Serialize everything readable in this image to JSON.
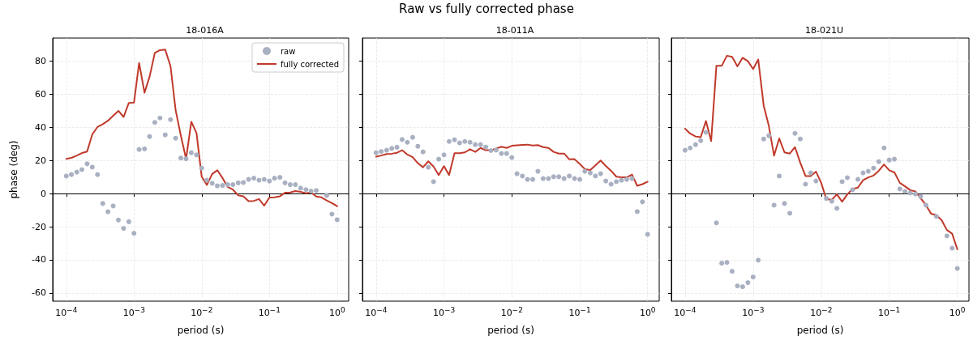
{
  "chart_data": [
    {
      "type": "line",
      "subtitle": "18-016A",
      "xlabel": "period (s)",
      "ylabel": "phase (deg)",
      "log": "x",
      "grid": true,
      "legend": "top right",
      "x": [
        0.0001,
        0.000119,
        0.000143,
        0.00017,
        0.000203,
        0.000242,
        0.000289,
        0.000346,
        0.000412,
        0.000492,
        0.000588,
        0.000702,
        0.000838,
        0.001,
        0.00119,
        0.00143,
        0.0017,
        0.00203,
        0.00242,
        0.00289,
        0.00346,
        0.00412,
        0.00492,
        0.00588,
        0.00702,
        0.00838,
        0.01,
        0.0119,
        0.0143,
        0.017,
        0.0203,
        0.0242,
        0.0289,
        0.0346,
        0.0412,
        0.0492,
        0.0588,
        0.0702,
        0.0838,
        0.1,
        0.119,
        0.143,
        0.17,
        0.203,
        0.242,
        0.289,
        0.346,
        0.412,
        0.492,
        0.588,
        0.702,
        0.838,
        1
      ],
      "xlim": [
        6.3e-05,
        1.48
      ],
      "xticks": [
        {
          "value": 0.0001,
          "label": "10$^{−4}$"
        },
        {
          "value": 0.001,
          "label": "10$^{−3}$"
        },
        {
          "value": 0.01,
          "label": "10$^{−2}$"
        },
        {
          "value": 0.1,
          "label": "10$^{−1}$"
        },
        {
          "value": 1,
          "label": "10$^{0}$"
        }
      ],
      "ylim": [
        -65,
        94
      ],
      "yticks": [
        -60,
        -40,
        -20,
        0,
        20,
        40,
        60,
        80
      ],
      "series": [
        {
          "name": "raw",
          "type": "scatter",
          "marker": "circle",
          "color": "#a9b0c1",
          "values": [
            10.6,
            11.5,
            13,
            14.5,
            18,
            16,
            11.5,
            -6,
            -11,
            -7.5,
            -16,
            -21,
            -17,
            -24,
            26.7,
            27,
            34.5,
            43,
            45.7,
            35.5,
            44.7,
            33.5,
            21.5,
            21,
            24.7,
            23.4,
            15.4,
            8.1,
            6.2,
            4.7,
            4.9,
            5.4,
            5.4,
            6.5,
            6.7,
            8.6,
            9.3,
            8.1,
            8.6,
            7.6,
            9.3,
            9.8,
            6.5,
            5.4,
            5.4,
            3.3,
            2.4,
            1.5,
            1.8,
            null,
            -1.1,
            -12.4,
            -15.8
          ]
        },
        {
          "name": "fully corrected",
          "type": "line",
          "marker": "none",
          "color": "#c0392b",
          "values": [
            21,
            21.6,
            23,
            24.5,
            25.4,
            35.8,
            40.3,
            42,
            44,
            47,
            50,
            46.3,
            54.8,
            55,
            79,
            61,
            70.7,
            85,
            86.7,
            87,
            77,
            50.4,
            35,
            21,
            43.4,
            36.6,
            10.2,
            5.2,
            11.9,
            14.1,
            9.4,
            4,
            2.4,
            -1.1,
            -1.6,
            -4.6,
            -4.4,
            -3.3,
            -7.3,
            -2.4,
            -2.3,
            -1.6,
            0.5,
            0.7,
            1.5,
            1.1,
            0.2,
            0.7,
            -1.8,
            -2.3,
            -4.1,
            -5.7,
            -7.6
          ]
        }
      ]
    },
    {
      "type": "line",
      "title": "Raw vs fully corrected phase",
      "subtitle": "18-011A",
      "xlabel": "period (s)",
      "log": "x",
      "grid": true,
      "tick_labels": "x",
      "x": [
        0.0001,
        0.000119,
        0.000143,
        0.00017,
        0.000203,
        0.000242,
        0.000289,
        0.000346,
        0.000412,
        0.000492,
        0.000588,
        0.000702,
        0.000838,
        0.001,
        0.00119,
        0.00143,
        0.0017,
        0.00203,
        0.00242,
        0.00289,
        0.00346,
        0.00412,
        0.00492,
        0.00588,
        0.00702,
        0.00838,
        0.01,
        0.0119,
        0.0143,
        0.017,
        0.0203,
        0.0242,
        0.0289,
        0.0346,
        0.0412,
        0.0492,
        0.0588,
        0.0702,
        0.0838,
        0.1,
        0.119,
        0.143,
        0.17,
        0.203,
        0.242,
        0.289,
        0.346,
        0.412,
        0.492,
        0.588,
        0.702,
        0.838,
        1
      ],
      "xlim": [
        6.3e-05,
        1.48
      ],
      "xticks": [
        {
          "value": 0.0001,
          "label": "10$^{−4}$"
        },
        {
          "value": 0.001,
          "label": "10$^{−3}$"
        },
        {
          "value": 0.01,
          "label": "10$^{−2}$"
        },
        {
          "value": 0.1,
          "label": "10$^{−1}$"
        },
        {
          "value": 1,
          "label": "10$^{0}$"
        }
      ],
      "ylim": [
        -65,
        94
      ],
      "yticks": [
        -60,
        -40,
        -20,
        0,
        20,
        40,
        60,
        80
      ],
      "series": [
        {
          "type": "scatter",
          "marker": "circle",
          "color": "#a9b0c1",
          "values": [
            24.7,
            25.4,
            26.2,
            27.3,
            28,
            32.7,
            31,
            34,
            28.6,
            25.2,
            15.9,
            7.2,
            20.8,
            23.4,
            31.5,
            32.5,
            30.6,
            31.5,
            31,
            29.6,
            29.6,
            28.1,
            26,
            26.3,
            24.2,
            24.2,
            21.8,
            12,
            10.6,
            8.6,
            8.6,
            13.5,
            9.1,
            9.1,
            10.2,
            10.2,
            9.1,
            10.6,
            9.1,
            8.6,
            13.5,
            12.5,
            10.6,
            12,
            7.6,
            5.7,
            7.2,
            8.1,
            8.6,
            9.1,
            -10.9,
            -5,
            -24.6
          ]
        },
        {
          "type": "line",
          "marker": "none",
          "color": "#c0392b",
          "values": [
            22.3,
            23,
            23.9,
            24.1,
            24.7,
            26.2,
            23.6,
            22,
            18.4,
            15.9,
            19.5,
            16.3,
            11.2,
            16.6,
            11.2,
            24.4,
            24.4,
            24.9,
            26.8,
            25.2,
            27.6,
            26.2,
            26.2,
            27.2,
            28.3,
            27.6,
            28.9,
            29.2,
            29.4,
            29.6,
            29.1,
            29.3,
            28.1,
            27.6,
            25.2,
            24.2,
            24.2,
            20.7,
            20.8,
            17.9,
            14.8,
            14.3,
            17.1,
            20,
            16.7,
            13.8,
            10.2,
            9.9,
            9.8,
            11.5,
            4.7,
            5.7,
            7.2
          ]
        }
      ]
    },
    {
      "type": "line",
      "subtitle": "18-021U",
      "xlabel": "period (s)",
      "log": "x",
      "grid": true,
      "tick_labels": "x",
      "x": [
        0.0001,
        0.000119,
        0.000143,
        0.00017,
        0.000203,
        0.000242,
        0.000289,
        0.000346,
        0.000412,
        0.000492,
        0.000588,
        0.000702,
        0.000838,
        0.001,
        0.00119,
        0.00143,
        0.0017,
        0.00203,
        0.00242,
        0.00289,
        0.00346,
        0.00412,
        0.00492,
        0.00588,
        0.00702,
        0.00838,
        0.01,
        0.0119,
        0.0143,
        0.017,
        0.0203,
        0.0242,
        0.0289,
        0.0346,
        0.0412,
        0.0492,
        0.0588,
        0.0702,
        0.0838,
        0.1,
        0.119,
        0.143,
        0.17,
        0.203,
        0.242,
        0.289,
        0.346,
        0.412,
        0.492,
        0.588,
        0.702,
        0.838,
        1
      ],
      "xlim": [
        6.3e-05,
        1.48
      ],
      "xticks": [
        {
          "value": 0.0001,
          "label": "10$^{−4}$"
        },
        {
          "value": 0.001,
          "label": "10$^{−3}$"
        },
        {
          "value": 0.01,
          "label": "10$^{−2}$"
        },
        {
          "value": 0.1,
          "label": "10$^{−1}$"
        },
        {
          "value": 1,
          "label": "10$^{0}$"
        }
      ],
      "ylim": [
        -65,
        94
      ],
      "yticks": [
        -60,
        -40,
        -20,
        0,
        20,
        40,
        60,
        80
      ],
      "series": [
        {
          "type": "scatter",
          "marker": "circle",
          "color": "#a9b0c1",
          "values": [
            26.2,
            27.6,
            29.6,
            32,
            37,
            null,
            -17.7,
            -42.1,
            -41.6,
            -47,
            -55.8,
            -56.3,
            -53.8,
            -50.4,
            -40.2,
            33,
            35,
            -7,
            10.6,
            -6,
            -11.9,
            36.4,
            33,
            5.7,
            12.5,
            7.6,
            null,
            -2.9,
            -4.6,
            -8.9,
            7.2,
            9.6,
            2.3,
            8.6,
            12.5,
            13.5,
            15.4,
            19.3,
            27.6,
            20.3,
            20.8,
            2.8,
            1.3,
            0.3,
            -0.2,
            -1.8,
            -7,
            null,
            -13.8,
            null,
            -25.6,
            -33,
            -45.2
          ]
        },
        {
          "type": "line",
          "marker": "none",
          "color": "#c0392b",
          "values": [
            39.2,
            36.3,
            34.5,
            34.1,
            43.9,
            31.7,
            77.2,
            77.2,
            83.3,
            82.6,
            76.9,
            82.1,
            80,
            75.3,
            81,
            53.2,
            41,
            22.9,
            33.3,
            24.9,
            24.2,
            28.1,
            18.7,
            10.6,
            10.6,
            13.3,
            6.5,
            -3.4,
            -3.7,
            -0.5,
            -4.9,
            -0.5,
            2.8,
            3.6,
            8.1,
            9.8,
            10.9,
            13.8,
            17.6,
            14.1,
            12.8,
            6.5,
            4.4,
            2.1,
            1.3,
            -2.8,
            -7,
            -12.2,
            -13,
            -16.1,
            -22,
            -24.2,
            -33.7
          ]
        }
      ]
    }
  ]
}
